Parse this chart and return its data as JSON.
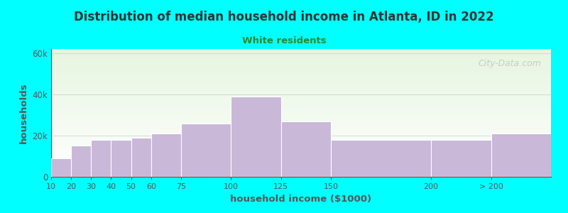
{
  "title": "Distribution of median household income in Atlanta, ID in 2022",
  "subtitle": "White residents",
  "xlabel": "household income ($1000)",
  "ylabel": "households",
  "background_color": "#00FFFF",
  "bar_color": "#C9B8D8",
  "title_color": "#333333",
  "subtitle_color": "#2a8a2a",
  "axis_label_color": "#555555",
  "tick_color": "#555555",
  "watermark_text": "City-Data.com",
  "values": [
    9000,
    15000,
    18000,
    18000,
    19000,
    21000,
    26000,
    39000,
    27000,
    18000,
    18000,
    21000
  ],
  "bar_lefts": [
    10,
    20,
    30,
    40,
    50,
    60,
    75,
    100,
    125,
    150,
    200,
    230
  ],
  "bar_actual_widths": [
    10,
    10,
    10,
    10,
    10,
    15,
    25,
    25,
    25,
    50,
    30,
    30
  ],
  "xtick_labels": [
    "10",
    "20",
    "30",
    "40",
    "50",
    "60",
    "75",
    "100",
    "125",
    "150",
    "200",
    "> 200"
  ],
  "xtick_positions": [
    10,
    20,
    30,
    40,
    50,
    60,
    75,
    100,
    125,
    150,
    200,
    230
  ],
  "ylim": [
    0,
    62000
  ],
  "ytick_values": [
    0,
    20000,
    40000,
    60000
  ],
  "ytick_labels": [
    "0",
    "20k",
    "40k",
    "60k"
  ],
  "grid_color": "#cccccc",
  "figsize": [
    8.0,
    3.0
  ],
  "dpi": 100
}
